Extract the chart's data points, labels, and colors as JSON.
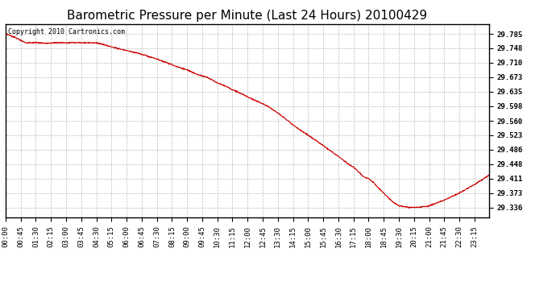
{
  "title": "Barometric Pressure per Minute (Last 24 Hours) 20100429",
  "copyright_text": "Copyright 2010 Cartronics.com",
  "line_color": "#cc0000",
  "background_color": "#ffffff",
  "grid_color": "#bbbbbb",
  "yticks": [
    29.785,
    29.748,
    29.71,
    29.673,
    29.635,
    29.598,
    29.56,
    29.523,
    29.486,
    29.448,
    29.411,
    29.373,
    29.336
  ],
  "ylim": [
    29.31,
    29.81
  ],
  "xtick_labels": [
    "00:00",
    "00:45",
    "01:30",
    "02:15",
    "03:00",
    "03:45",
    "04:30",
    "05:15",
    "06:00",
    "06:45",
    "07:30",
    "08:15",
    "09:00",
    "09:45",
    "10:30",
    "11:15",
    "12:00",
    "12:45",
    "13:30",
    "14:15",
    "15:00",
    "15:45",
    "16:30",
    "17:15",
    "18:00",
    "18:45",
    "19:30",
    "20:15",
    "21:00",
    "21:45",
    "22:30",
    "23:15"
  ],
  "title_fontsize": 11,
  "copyright_fontsize": 6,
  "tick_fontsize": 6.5,
  "keypoints_min": [
    0,
    30,
    60,
    90,
    120,
    135,
    150,
    165,
    180,
    210,
    240,
    270,
    300,
    330,
    360,
    390,
    420,
    450,
    480,
    510,
    540,
    570,
    600,
    630,
    660,
    675,
    690,
    720,
    750,
    780,
    810,
    840,
    870,
    900,
    930,
    960,
    990,
    1020,
    1035,
    1050,
    1065,
    1080,
    1095,
    1110,
    1125,
    1140,
    1155,
    1170,
    1200,
    1230,
    1260,
    1305,
    1350,
    1395,
    1439
  ],
  "keypoints_val": [
    29.785,
    29.775,
    29.762,
    29.762,
    29.76,
    29.761,
    29.762,
    29.762,
    29.762,
    29.762,
    29.762,
    29.762,
    29.755,
    29.748,
    29.742,
    29.736,
    29.728,
    29.72,
    29.71,
    29.7,
    29.692,
    29.68,
    29.673,
    29.658,
    29.648,
    29.64,
    29.635,
    29.622,
    29.61,
    29.598,
    29.58,
    29.56,
    29.54,
    29.523,
    29.505,
    29.486,
    29.468,
    29.448,
    29.44,
    29.428,
    29.415,
    29.411,
    29.4,
    29.385,
    29.373,
    29.36,
    29.348,
    29.34,
    29.336,
    29.336,
    29.34,
    29.355,
    29.373,
    29.395,
    29.42
  ]
}
